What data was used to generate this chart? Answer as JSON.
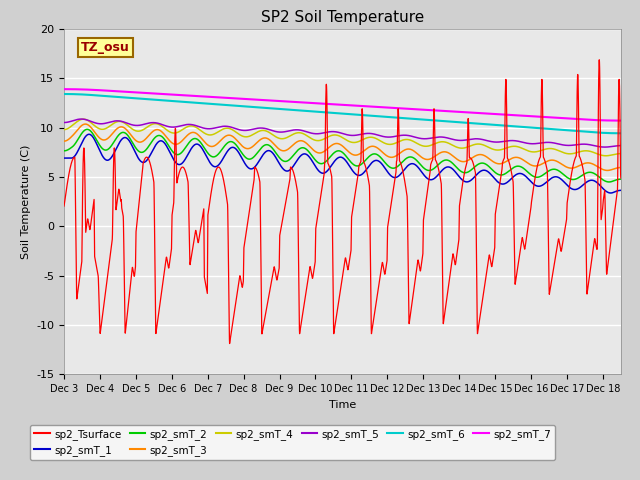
{
  "title": "SP2 Soil Temperature",
  "xlabel": "Time",
  "ylabel": "Soil Temperature (C)",
  "ylim": [
    -15,
    20
  ],
  "xlim": [
    0,
    15.5
  ],
  "annotation": "TZ_osu",
  "fig_facecolor": "#d0d0d0",
  "axes_facecolor": "#e8e8e8",
  "grid_color": "#ffffff",
  "series_colors": {
    "sp2_Tsurface": "#ff0000",
    "sp2_smT_1": "#0000cc",
    "sp2_smT_2": "#00cc00",
    "sp2_smT_3": "#ff8800",
    "sp2_smT_4": "#cccc00",
    "sp2_smT_5": "#9900cc",
    "sp2_smT_6": "#00cccc",
    "sp2_smT_7": "#ff00ff"
  },
  "xtick_labels": [
    "Dec 3",
    "Dec 4",
    "Dec 5",
    "Dec 6",
    "Dec 7",
    "Dec 8",
    "Dec 9",
    "Dec 10",
    "Dec 11",
    "Dec 12",
    "Dec 13",
    "Dec 14",
    "Dec 15",
    "Dec 16",
    "Dec 17",
    "Dec 18"
  ],
  "xtick_positions": [
    0,
    1,
    2,
    3,
    4,
    5,
    6,
    7,
    8,
    9,
    10,
    11,
    12,
    13,
    14,
    15
  ],
  "ytick_positions": [
    -15,
    -10,
    -5,
    0,
    5,
    10,
    15,
    20
  ],
  "n_points": 3000
}
